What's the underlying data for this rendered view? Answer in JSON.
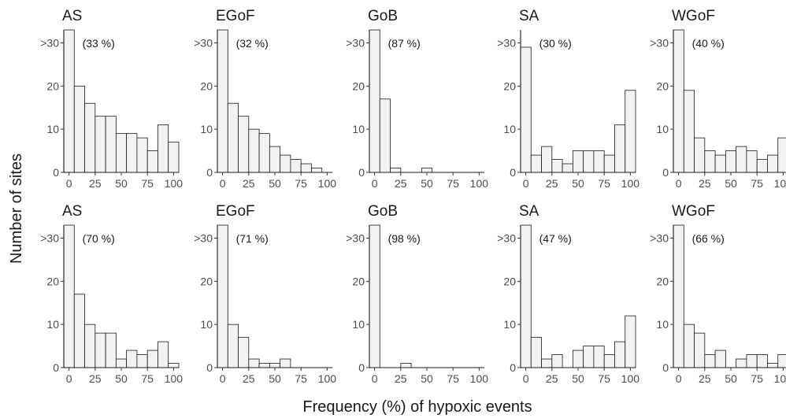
{
  "chart_data": {
    "type": "bar",
    "subtype": "histogram-facets",
    "xlabel": "Frequency (%) of hypoxic events",
    "ylabel": "Number of sites",
    "x_ticks": [
      "0",
      "25",
      "50",
      "75",
      "100"
    ],
    "y_ticks": [
      "0",
      "10",
      "20",
      ">30"
    ],
    "xlim": [
      -5,
      105
    ],
    "ylim": [
      0,
      33
    ],
    "bin_width": 10,
    "bin_centers": [
      0,
      10,
      20,
      30,
      40,
      50,
      60,
      70,
      80,
      90,
      100
    ],
    "grid": false,
    "rows": [
      {
        "panels": [
          {
            "title": "AS",
            "annotation": "(33 %)",
            "values": [
              33,
              20,
              16,
              13,
              13,
              9,
              9,
              8,
              5,
              11,
              7
            ]
          },
          {
            "title": "EGoF",
            "annotation": "(32 %)",
            "values": [
              33,
              16,
              13,
              10,
              9,
              6,
              4,
              3,
              2,
              1,
              0
            ]
          },
          {
            "title": "GoB",
            "annotation": "(87 %)",
            "values": [
              33,
              17,
              1,
              0,
              0,
              1,
              0,
              0,
              0,
              0,
              0
            ]
          },
          {
            "title": "SA",
            "annotation": "(30 %)",
            "values": [
              29,
              4,
              6,
              3,
              2,
              5,
              5,
              5,
              4,
              11,
              19
            ]
          },
          {
            "title": "WGoF",
            "annotation": "(40 %)",
            "values": [
              33,
              19,
              8,
              5,
              4,
              5,
              6,
              5,
              3,
              4,
              8
            ]
          }
        ]
      },
      {
        "panels": [
          {
            "title": "AS",
            "annotation": "(70 %)",
            "values": [
              33,
              17,
              10,
              8,
              8,
              2,
              4,
              3,
              4,
              6,
              1
            ]
          },
          {
            "title": "EGoF",
            "annotation": "(71 %)",
            "values": [
              33,
              10,
              7,
              2,
              1,
              1,
              2,
              0,
              0,
              0,
              0
            ]
          },
          {
            "title": "GoB",
            "annotation": "(98 %)",
            "values": [
              33,
              0,
              0,
              1,
              0,
              0,
              0,
              0,
              0,
              0,
              0
            ]
          },
          {
            "title": "SA",
            "annotation": "(47 %)",
            "values": [
              33,
              7,
              2,
              3,
              0,
              4,
              5,
              5,
              3,
              6,
              12
            ]
          },
          {
            "title": "WGoF",
            "annotation": "(66 %)",
            "values": [
              33,
              10,
              8,
              3,
              4,
              0,
              2,
              3,
              3,
              1,
              3
            ]
          }
        ]
      }
    ]
  }
}
